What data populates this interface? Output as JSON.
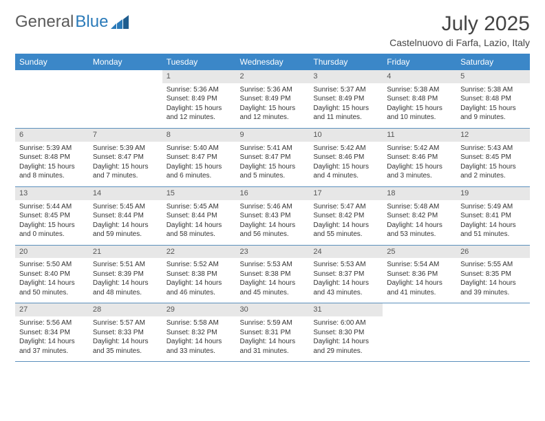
{
  "logo": {
    "text1": "General",
    "text2": "Blue"
  },
  "title": "July 2025",
  "location": "Castelnuovo di Farfa, Lazio, Italy",
  "colors": {
    "headerBg": "#3b87c8",
    "headerText": "#ffffff",
    "dayNumBg": "#e7e7e7",
    "rowBorder": "#5a8fbc",
    "logoBlue": "#2a7ab9",
    "textColor": "#333333",
    "pageBg": "#ffffff"
  },
  "weekdays": [
    "Sunday",
    "Monday",
    "Tuesday",
    "Wednesday",
    "Thursday",
    "Friday",
    "Saturday"
  ],
  "weeks": [
    [
      null,
      null,
      {
        "n": "1",
        "sr": "Sunrise: 5:36 AM",
        "ss": "Sunset: 8:49 PM",
        "d1": "Daylight: 15 hours",
        "d2": "and 12 minutes."
      },
      {
        "n": "2",
        "sr": "Sunrise: 5:36 AM",
        "ss": "Sunset: 8:49 PM",
        "d1": "Daylight: 15 hours",
        "d2": "and 12 minutes."
      },
      {
        "n": "3",
        "sr": "Sunrise: 5:37 AM",
        "ss": "Sunset: 8:49 PM",
        "d1": "Daylight: 15 hours",
        "d2": "and 11 minutes."
      },
      {
        "n": "4",
        "sr": "Sunrise: 5:38 AM",
        "ss": "Sunset: 8:48 PM",
        "d1": "Daylight: 15 hours",
        "d2": "and 10 minutes."
      },
      {
        "n": "5",
        "sr": "Sunrise: 5:38 AM",
        "ss": "Sunset: 8:48 PM",
        "d1": "Daylight: 15 hours",
        "d2": "and 9 minutes."
      }
    ],
    [
      {
        "n": "6",
        "sr": "Sunrise: 5:39 AM",
        "ss": "Sunset: 8:48 PM",
        "d1": "Daylight: 15 hours",
        "d2": "and 8 minutes."
      },
      {
        "n": "7",
        "sr": "Sunrise: 5:39 AM",
        "ss": "Sunset: 8:47 PM",
        "d1": "Daylight: 15 hours",
        "d2": "and 7 minutes."
      },
      {
        "n": "8",
        "sr": "Sunrise: 5:40 AM",
        "ss": "Sunset: 8:47 PM",
        "d1": "Daylight: 15 hours",
        "d2": "and 6 minutes."
      },
      {
        "n": "9",
        "sr": "Sunrise: 5:41 AM",
        "ss": "Sunset: 8:47 PM",
        "d1": "Daylight: 15 hours",
        "d2": "and 5 minutes."
      },
      {
        "n": "10",
        "sr": "Sunrise: 5:42 AM",
        "ss": "Sunset: 8:46 PM",
        "d1": "Daylight: 15 hours",
        "d2": "and 4 minutes."
      },
      {
        "n": "11",
        "sr": "Sunrise: 5:42 AM",
        "ss": "Sunset: 8:46 PM",
        "d1": "Daylight: 15 hours",
        "d2": "and 3 minutes."
      },
      {
        "n": "12",
        "sr": "Sunrise: 5:43 AM",
        "ss": "Sunset: 8:45 PM",
        "d1": "Daylight: 15 hours",
        "d2": "and 2 minutes."
      }
    ],
    [
      {
        "n": "13",
        "sr": "Sunrise: 5:44 AM",
        "ss": "Sunset: 8:45 PM",
        "d1": "Daylight: 15 hours",
        "d2": "and 0 minutes."
      },
      {
        "n": "14",
        "sr": "Sunrise: 5:45 AM",
        "ss": "Sunset: 8:44 PM",
        "d1": "Daylight: 14 hours",
        "d2": "and 59 minutes."
      },
      {
        "n": "15",
        "sr": "Sunrise: 5:45 AM",
        "ss": "Sunset: 8:44 PM",
        "d1": "Daylight: 14 hours",
        "d2": "and 58 minutes."
      },
      {
        "n": "16",
        "sr": "Sunrise: 5:46 AM",
        "ss": "Sunset: 8:43 PM",
        "d1": "Daylight: 14 hours",
        "d2": "and 56 minutes."
      },
      {
        "n": "17",
        "sr": "Sunrise: 5:47 AM",
        "ss": "Sunset: 8:42 PM",
        "d1": "Daylight: 14 hours",
        "d2": "and 55 minutes."
      },
      {
        "n": "18",
        "sr": "Sunrise: 5:48 AM",
        "ss": "Sunset: 8:42 PM",
        "d1": "Daylight: 14 hours",
        "d2": "and 53 minutes."
      },
      {
        "n": "19",
        "sr": "Sunrise: 5:49 AM",
        "ss": "Sunset: 8:41 PM",
        "d1": "Daylight: 14 hours",
        "d2": "and 51 minutes."
      }
    ],
    [
      {
        "n": "20",
        "sr": "Sunrise: 5:50 AM",
        "ss": "Sunset: 8:40 PM",
        "d1": "Daylight: 14 hours",
        "d2": "and 50 minutes."
      },
      {
        "n": "21",
        "sr": "Sunrise: 5:51 AM",
        "ss": "Sunset: 8:39 PM",
        "d1": "Daylight: 14 hours",
        "d2": "and 48 minutes."
      },
      {
        "n": "22",
        "sr": "Sunrise: 5:52 AM",
        "ss": "Sunset: 8:38 PM",
        "d1": "Daylight: 14 hours",
        "d2": "and 46 minutes."
      },
      {
        "n": "23",
        "sr": "Sunrise: 5:53 AM",
        "ss": "Sunset: 8:38 PM",
        "d1": "Daylight: 14 hours",
        "d2": "and 45 minutes."
      },
      {
        "n": "24",
        "sr": "Sunrise: 5:53 AM",
        "ss": "Sunset: 8:37 PM",
        "d1": "Daylight: 14 hours",
        "d2": "and 43 minutes."
      },
      {
        "n": "25",
        "sr": "Sunrise: 5:54 AM",
        "ss": "Sunset: 8:36 PM",
        "d1": "Daylight: 14 hours",
        "d2": "and 41 minutes."
      },
      {
        "n": "26",
        "sr": "Sunrise: 5:55 AM",
        "ss": "Sunset: 8:35 PM",
        "d1": "Daylight: 14 hours",
        "d2": "and 39 minutes."
      }
    ],
    [
      {
        "n": "27",
        "sr": "Sunrise: 5:56 AM",
        "ss": "Sunset: 8:34 PM",
        "d1": "Daylight: 14 hours",
        "d2": "and 37 minutes."
      },
      {
        "n": "28",
        "sr": "Sunrise: 5:57 AM",
        "ss": "Sunset: 8:33 PM",
        "d1": "Daylight: 14 hours",
        "d2": "and 35 minutes."
      },
      {
        "n": "29",
        "sr": "Sunrise: 5:58 AM",
        "ss": "Sunset: 8:32 PM",
        "d1": "Daylight: 14 hours",
        "d2": "and 33 minutes."
      },
      {
        "n": "30",
        "sr": "Sunrise: 5:59 AM",
        "ss": "Sunset: 8:31 PM",
        "d1": "Daylight: 14 hours",
        "d2": "and 31 minutes."
      },
      {
        "n": "31",
        "sr": "Sunrise: 6:00 AM",
        "ss": "Sunset: 8:30 PM",
        "d1": "Daylight: 14 hours",
        "d2": "and 29 minutes."
      },
      null,
      null
    ]
  ]
}
